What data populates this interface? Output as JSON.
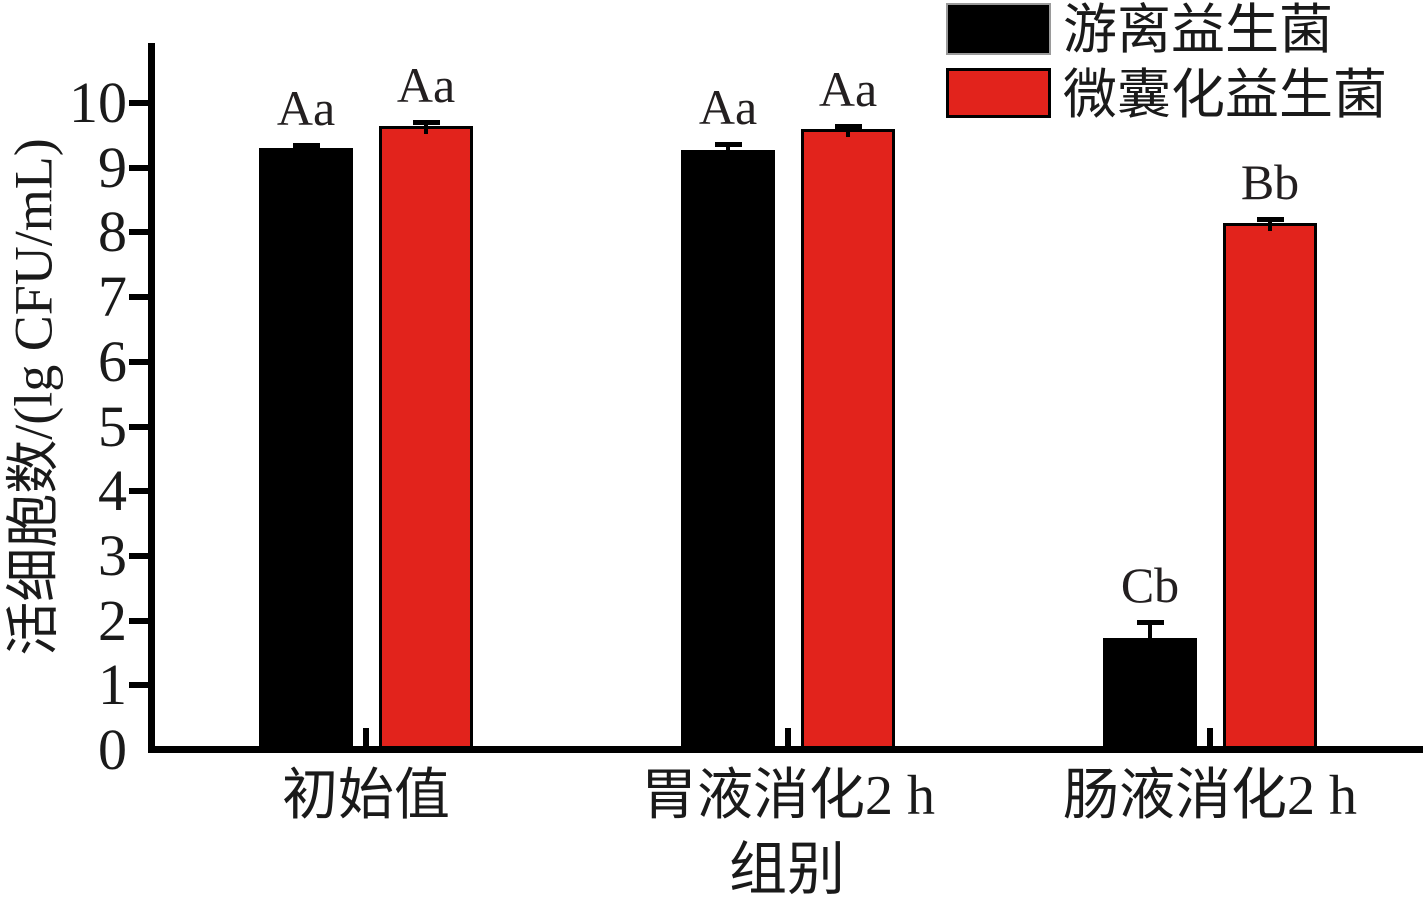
{
  "figure": {
    "background": "#ffffff",
    "text_color": "#1a1a1a"
  },
  "chart_data": {
    "type": "bar",
    "title": "",
    "categories": [
      "初始值",
      "胃液消化2 h",
      "肠液消化2 h"
    ],
    "xlabel": "组别",
    "ylabel": "活细胞数/(lg CFU/mL)",
    "ylim": [
      0,
      10.9
    ],
    "yticks": [
      0,
      1,
      2,
      3,
      4,
      5,
      6,
      7,
      8,
      9,
      10
    ],
    "grid": false,
    "legend_position": "top-right",
    "series": [
      {
        "name": "游离益生菌",
        "color": "#000000",
        "values": [
          9.3,
          9.27,
          1.73
        ],
        "errors": [
          0.05,
          0.1,
          0.25
        ],
        "sig_labels": [
          "Aa",
          "Aa",
          "Cb"
        ]
      },
      {
        "name": "微囊化益生菌",
        "color": "#e2231c",
        "values": [
          9.65,
          9.6,
          8.15
        ],
        "errors": [
          0.06,
          0.05,
          0.06
        ],
        "sig_labels": [
          "Aa",
          "Aa",
          "Bb"
        ]
      }
    ]
  }
}
